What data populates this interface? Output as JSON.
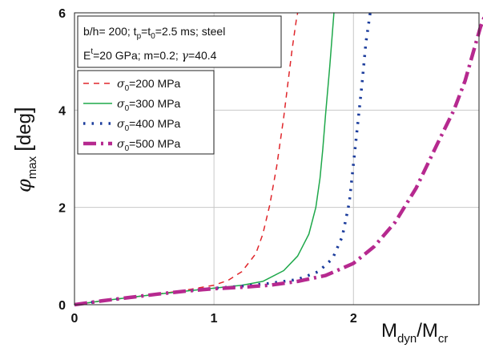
{
  "chart_data": {
    "type": "line",
    "xlabel": {
      "main": "M",
      "sub": "dyn",
      "slash": "/M",
      "sub2": "cr"
    },
    "ylabel": {
      "symbol": "φ",
      "sub": "max",
      "unit": "deg"
    },
    "x_ticks": [
      "0",
      "1",
      "2"
    ],
    "y_ticks": [
      "0",
      "2",
      "4",
      "6"
    ],
    "xlim": [
      0,
      2.9
    ],
    "ylim": [
      0,
      6
    ],
    "grid": true,
    "info_box": {
      "line1": "b/h= 200; t",
      "line1_sub_p": "p",
      "line1_mid": "=t",
      "line1_sub_0": "0",
      "line1_end": "=2.5 ms; steel",
      "line2": "E",
      "line2_sup": "t",
      "line2_mid": "=20 GPa; m=0.2; ",
      "line2_gamma": "γ",
      "line2_end": "=40.4"
    },
    "legend_placement": "top-left",
    "series": [
      {
        "name": "σ0=200 MPa",
        "sym": "σ",
        "sub": "0",
        "text": "=200 MPa",
        "color": "#e0262b",
        "style": "dashed",
        "width": 1.5,
        "x": [
          0,
          0.2,
          0.4,
          0.6,
          0.8,
          1.0,
          1.1,
          1.2,
          1.3,
          1.35,
          1.4,
          1.45,
          1.5,
          1.53,
          1.56,
          1.59,
          1.6
        ],
        "y": [
          0,
          0.08,
          0.15,
          0.22,
          0.3,
          0.4,
          0.5,
          0.68,
          1.05,
          1.45,
          2.05,
          2.85,
          3.85,
          4.55,
          5.25,
          5.85,
          6.0
        ]
      },
      {
        "name": "σ0=300 MPa",
        "sym": "σ",
        "sub": "0",
        "text": "=300 MPa",
        "color": "#1ea84a",
        "style": "solid",
        "width": 1.5,
        "x": [
          0,
          0.2,
          0.4,
          0.6,
          0.8,
          1.0,
          1.2,
          1.35,
          1.5,
          1.6,
          1.68,
          1.73,
          1.76,
          1.78,
          1.8,
          1.83,
          1.86
        ],
        "y": [
          0,
          0.08,
          0.15,
          0.22,
          0.28,
          0.34,
          0.4,
          0.48,
          0.7,
          1.0,
          1.45,
          2.0,
          2.6,
          3.2,
          3.9,
          4.9,
          6.0
        ]
      },
      {
        "name": "σ0=400 MPa",
        "sym": "σ",
        "sub": "0",
        "text": "=400 MPa",
        "color": "#1b3c9c",
        "style": "dotted",
        "width": 3.5,
        "x": [
          0,
          0.2,
          0.4,
          0.6,
          0.8,
          1.0,
          1.2,
          1.4,
          1.6,
          1.75,
          1.85,
          1.92,
          1.97,
          2.0,
          2.03,
          2.06,
          2.09,
          2.12
        ],
        "y": [
          0,
          0.08,
          0.15,
          0.22,
          0.28,
          0.34,
          0.38,
          0.44,
          0.52,
          0.68,
          0.95,
          1.4,
          2.1,
          2.9,
          3.7,
          4.5,
          5.4,
          6.0
        ]
      },
      {
        "name": "σ0=500 MPa",
        "sym": "σ",
        "sub": "0",
        "text": "=500 MPa",
        "color": "#b6298f",
        "style": "dashdot",
        "width": 4.5,
        "x": [
          0,
          0.2,
          0.4,
          0.6,
          0.8,
          1.0,
          1.2,
          1.4,
          1.6,
          1.8,
          2.0,
          2.15,
          2.3,
          2.45,
          2.6,
          2.72,
          2.8,
          2.86,
          2.91,
          2.95
        ],
        "y": [
          0,
          0.08,
          0.15,
          0.22,
          0.28,
          0.33,
          0.36,
          0.4,
          0.48,
          0.6,
          0.85,
          1.2,
          1.7,
          2.4,
          3.3,
          4.0,
          4.6,
          5.2,
          5.7,
          6.0
        ]
      }
    ]
  }
}
